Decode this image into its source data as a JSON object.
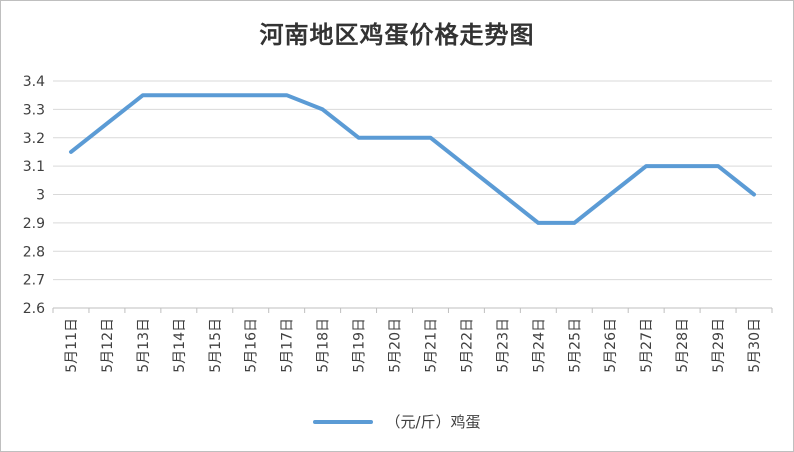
{
  "chart_data": {
    "type": "line",
    "title": "河南地区鸡蛋价格走势图",
    "categories": [
      "5月11日",
      "5月12日",
      "5月13日",
      "5月14日",
      "5月15日",
      "5月16日",
      "5月17日",
      "5月18日",
      "5月19日",
      "5月20日",
      "5月21日",
      "5月22日",
      "5月23日",
      "5月24日",
      "5月25日",
      "5月26日",
      "5月27日",
      "5月28日",
      "5月29日",
      "5月30日"
    ],
    "series": [
      {
        "name": "（元/斤）鸡蛋",
        "values": [
          3.15,
          3.25,
          3.35,
          3.35,
          3.35,
          3.35,
          3.35,
          3.3,
          3.2,
          3.2,
          3.2,
          3.1,
          3.0,
          2.9,
          2.9,
          3.0,
          3.1,
          3.1,
          3.1,
          3.0
        ]
      }
    ],
    "ylim": [
      2.6,
      3.4
    ],
    "yticks": [
      "2.6",
      "2.7",
      "2.8",
      "2.9",
      "3",
      "3.1",
      "3.2",
      "3.3",
      "3.4"
    ],
    "grid": true,
    "legend_position": "bottom",
    "colors": {
      "line": "#5b9bd5",
      "grid": "#d9d9d9"
    }
  }
}
